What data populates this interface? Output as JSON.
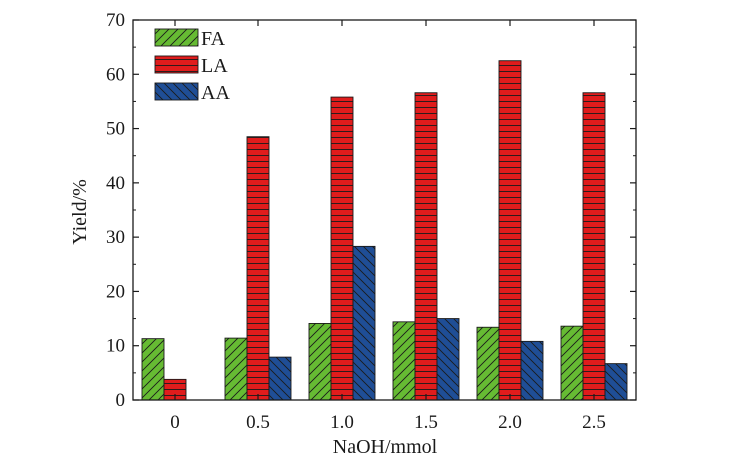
{
  "chart_data": {
    "type": "bar",
    "title": "",
    "xlabel": "NaOH/mmol",
    "ylabel": "Yield/%",
    "categories": [
      "0",
      "0.5",
      "1.0",
      "1.5",
      "2.0",
      "2.5"
    ],
    "ylim": [
      0,
      70
    ],
    "yticks": [
      0,
      10,
      20,
      30,
      40,
      50,
      60,
      70
    ],
    "grid": false,
    "legend_position": "top-left",
    "series": [
      {
        "name": "FA",
        "values": [
          11.3,
          11.4,
          14.1,
          14.4,
          13.4,
          13.6
        ],
        "color": "#66bb33",
        "pattern": "diagonal-up"
      },
      {
        "name": "LA",
        "values": [
          3.8,
          48.5,
          55.8,
          56.6,
          62.5,
          56.6
        ],
        "color": "#e01c1c",
        "pattern": "horizontal"
      },
      {
        "name": "AA",
        "values": [
          null,
          7.9,
          28.3,
          15.0,
          10.8,
          6.7
        ],
        "color": "#1f4e96",
        "pattern": "diagonal-down"
      }
    ]
  }
}
